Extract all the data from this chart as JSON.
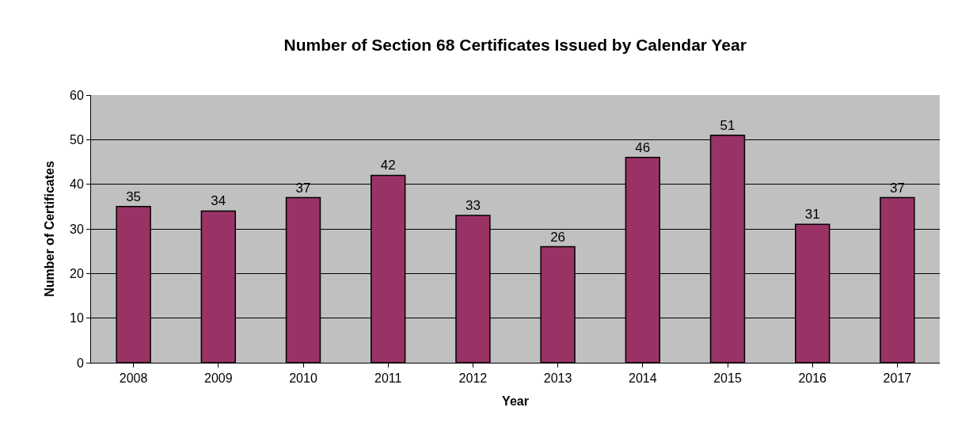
{
  "chart_data": {
    "type": "bar",
    "title": "Number of Section 68 Certificates Issued by Calendar Year",
    "xlabel": "Year",
    "ylabel": "Number of Certificates",
    "categories": [
      "2008",
      "2009",
      "2010",
      "2011",
      "2012",
      "2013",
      "2014",
      "2015",
      "2016",
      "2017"
    ],
    "values": [
      35,
      34,
      37,
      42,
      33,
      26,
      46,
      51,
      31,
      37
    ],
    "color": "#993366",
    "ylim": [
      0,
      60
    ],
    "yticks": [
      0,
      10,
      20,
      30,
      40,
      50,
      60
    ],
    "grid": "y",
    "data_labels": true
  }
}
